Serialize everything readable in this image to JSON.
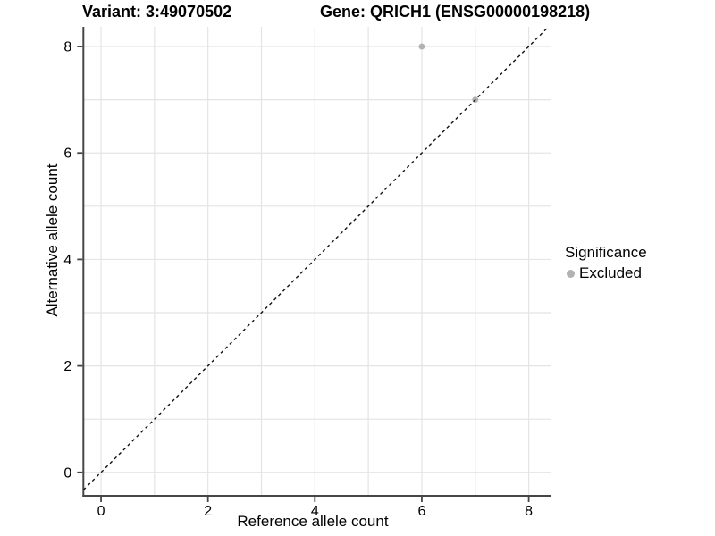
{
  "chart_data": {
    "type": "scatter",
    "title_left": "Variant: 3:49070502",
    "title_right": "Gene: QRICH1 (ENSG00000198218)",
    "xlabel": "Reference allele count",
    "ylabel": "Alternative allele count",
    "xlim": [
      -0.33,
      8.42
    ],
    "ylim": [
      -0.44,
      8.37
    ],
    "xticks": [
      0,
      2,
      4,
      6,
      8
    ],
    "yticks": [
      0,
      2,
      4,
      6,
      8
    ],
    "grid": true,
    "grid_interval": 1,
    "series": [
      {
        "name": "Excluded",
        "color": "#b2b2b2",
        "points": [
          [
            6,
            8
          ],
          [
            7,
            7
          ]
        ]
      }
    ],
    "reference_line": {
      "kind": "identity y=x",
      "style": "dashed",
      "color": "#111111"
    },
    "legend": {
      "title": "Significance",
      "position": "right",
      "entries": [
        {
          "label": "Excluded",
          "color": "#b2b2b2"
        }
      ]
    }
  },
  "colors": {
    "background": "#ffffff",
    "gridline": "#e4e4e4",
    "axis": "#464646",
    "tick_text": "#000000",
    "point": "#b2b2b2"
  }
}
